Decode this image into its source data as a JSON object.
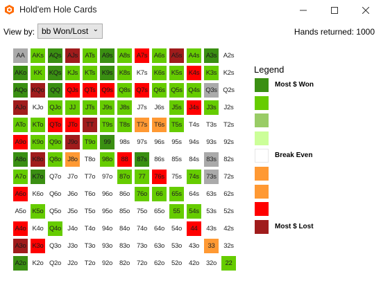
{
  "window": {
    "title": "Hold'em Hole Cards"
  },
  "toolbar": {
    "viewby_label": "View by:",
    "viewby_value": "bb Won/Lost",
    "hands_returned": "Hands returned: 1000"
  },
  "legend": {
    "title": "Legend",
    "levels": [
      {
        "color": "#3a8f12",
        "label": "Most $ Won"
      },
      {
        "color": "#66cc00",
        "label": ""
      },
      {
        "color": "#99cc66",
        "label": ""
      },
      {
        "color": "#ccff99",
        "label": ""
      },
      {
        "color": "#ffffff",
        "label": "Break Even"
      },
      {
        "color": "#ff9933",
        "label": ""
      },
      {
        "color": "#ff9933",
        "label": ""
      },
      {
        "color": "#ff0000",
        "label": ""
      },
      {
        "color": "#a01c1c",
        "label": "Most $ Lost"
      }
    ]
  },
  "palette": {
    "G": "#3a8f12",
    "g": "#66cc00",
    "l": "#99cc66",
    "w": "#ffffff",
    "o": "#ff9933",
    "r": "#ff0000",
    "R": "#a01c1c",
    "a": "#aaaaaa"
  },
  "matrix": [
    [
      [
        "AA",
        "a"
      ],
      [
        "AKs",
        "g"
      ],
      [
        "AQs",
        "G"
      ],
      [
        "AJs",
        "R"
      ],
      [
        "ATs",
        "g"
      ],
      [
        "A9s",
        "G"
      ],
      [
        "A8s",
        "g"
      ],
      [
        "A7s",
        "r"
      ],
      [
        "A6s",
        "g"
      ],
      [
        "A5s",
        "R"
      ],
      [
        "A4s",
        "g"
      ],
      [
        "A3s",
        "G"
      ],
      [
        "A2s",
        "w"
      ]
    ],
    [
      [
        "AKo",
        "G"
      ],
      [
        "KK",
        "g"
      ],
      [
        "KQs",
        "G"
      ],
      [
        "KJs",
        "g"
      ],
      [
        "KTs",
        "g"
      ],
      [
        "K9s",
        "G"
      ],
      [
        "K8s",
        "g"
      ],
      [
        "K7s",
        "w"
      ],
      [
        "K6s",
        "g"
      ],
      [
        "K5s",
        "g"
      ],
      [
        "K4s",
        "r"
      ],
      [
        "K3s",
        "g"
      ],
      [
        "K2s",
        "w"
      ]
    ],
    [
      [
        "AQo",
        "G"
      ],
      [
        "KQo",
        "R"
      ],
      [
        "QQ",
        "G"
      ],
      [
        "QJs",
        "r"
      ],
      [
        "QTs",
        "r"
      ],
      [
        "Q9s",
        "r"
      ],
      [
        "Q8s",
        "g"
      ],
      [
        "Q7s",
        "r"
      ],
      [
        "Q6s",
        "g"
      ],
      [
        "Q5s",
        "g"
      ],
      [
        "Q4s",
        "g"
      ],
      [
        "Q3s",
        "a"
      ],
      [
        "Q2s",
        "w"
      ]
    ],
    [
      [
        "AJo",
        "R"
      ],
      [
        "KJo",
        "w"
      ],
      [
        "QJo",
        "g"
      ],
      [
        "JJ",
        "g"
      ],
      [
        "JTs",
        "g"
      ],
      [
        "J9s",
        "g"
      ],
      [
        "J8s",
        "g"
      ],
      [
        "J7s",
        "w"
      ],
      [
        "J6s",
        "w"
      ],
      [
        "J5s",
        "g"
      ],
      [
        "J4s",
        "r"
      ],
      [
        "J3s",
        "g"
      ],
      [
        "J2s",
        "w"
      ]
    ],
    [
      [
        "ATo",
        "g"
      ],
      [
        "KTo",
        "g"
      ],
      [
        "QTo",
        "r"
      ],
      [
        "JTo",
        "r"
      ],
      [
        "TT",
        "R"
      ],
      [
        "T9s",
        "g"
      ],
      [
        "T8s",
        "g"
      ],
      [
        "T7s",
        "o"
      ],
      [
        "T6s",
        "o"
      ],
      [
        "T5s",
        "g"
      ],
      [
        "T4s",
        "w"
      ],
      [
        "T3s",
        "w"
      ],
      [
        "T2s",
        "w"
      ]
    ],
    [
      [
        "A9o",
        "r"
      ],
      [
        "K9o",
        "g"
      ],
      [
        "Q9o",
        "g"
      ],
      [
        "J9o",
        "R"
      ],
      [
        "T9o",
        "g"
      ],
      [
        "99",
        "G"
      ],
      [
        "98s",
        "w"
      ],
      [
        "97s",
        "w"
      ],
      [
        "96s",
        "w"
      ],
      [
        "95s",
        "w"
      ],
      [
        "94s",
        "w"
      ],
      [
        "93s",
        "w"
      ],
      [
        "92s",
        "w"
      ]
    ],
    [
      [
        "A8o",
        "G"
      ],
      [
        "K8o",
        "R"
      ],
      [
        "Q8o",
        "g"
      ],
      [
        "J8o",
        "o"
      ],
      [
        "T8o",
        "w"
      ],
      [
        "98o",
        "g"
      ],
      [
        "88",
        "r"
      ],
      [
        "87s",
        "G"
      ],
      [
        "86s",
        "w"
      ],
      [
        "85s",
        "w"
      ],
      [
        "84s",
        "w"
      ],
      [
        "83s",
        "a"
      ],
      [
        "82s",
        "w"
      ]
    ],
    [
      [
        "A7o",
        "g"
      ],
      [
        "K7o",
        "G"
      ],
      [
        "Q7o",
        "w"
      ],
      [
        "J7o",
        "w"
      ],
      [
        "T7o",
        "w"
      ],
      [
        "97o",
        "w"
      ],
      [
        "87o",
        "g"
      ],
      [
        "77",
        "g"
      ],
      [
        "76s",
        "r"
      ],
      [
        "75s",
        "w"
      ],
      [
        "74s",
        "g"
      ],
      [
        "73s",
        "a"
      ],
      [
        "72s",
        "w"
      ]
    ],
    [
      [
        "A6o",
        "r"
      ],
      [
        "K6o",
        "w"
      ],
      [
        "Q6o",
        "w"
      ],
      [
        "J6o",
        "w"
      ],
      [
        "T6o",
        "w"
      ],
      [
        "96o",
        "w"
      ],
      [
        "86o",
        "w"
      ],
      [
        "76o",
        "g"
      ],
      [
        "66",
        "g"
      ],
      [
        "65s",
        "g"
      ],
      [
        "64s",
        "w"
      ],
      [
        "63s",
        "w"
      ],
      [
        "62s",
        "w"
      ]
    ],
    [
      [
        "A5o",
        "w"
      ],
      [
        "K5o",
        "g"
      ],
      [
        "Q5o",
        "w"
      ],
      [
        "J5o",
        "w"
      ],
      [
        "T5o",
        "w"
      ],
      [
        "95o",
        "w"
      ],
      [
        "85o",
        "w"
      ],
      [
        "75o",
        "w"
      ],
      [
        "65o",
        "w"
      ],
      [
        "55",
        "g"
      ],
      [
        "54s",
        "g"
      ],
      [
        "53s",
        "w"
      ],
      [
        "52s",
        "w"
      ]
    ],
    [
      [
        "A4o",
        "r"
      ],
      [
        "K4o",
        "w"
      ],
      [
        "Q4o",
        "g"
      ],
      [
        "J4o",
        "w"
      ],
      [
        "T4o",
        "w"
      ],
      [
        "94o",
        "w"
      ],
      [
        "84o",
        "w"
      ],
      [
        "74o",
        "w"
      ],
      [
        "64o",
        "w"
      ],
      [
        "54o",
        "w"
      ],
      [
        "44",
        "r"
      ],
      [
        "43s",
        "w"
      ],
      [
        "42s",
        "w"
      ]
    ],
    [
      [
        "A3o",
        "R"
      ],
      [
        "K3o",
        "r"
      ],
      [
        "Q3o",
        "w"
      ],
      [
        "J3o",
        "w"
      ],
      [
        "T3o",
        "w"
      ],
      [
        "93o",
        "w"
      ],
      [
        "83o",
        "w"
      ],
      [
        "73o",
        "w"
      ],
      [
        "63o",
        "w"
      ],
      [
        "53o",
        "w"
      ],
      [
        "43o",
        "w"
      ],
      [
        "33",
        "o"
      ],
      [
        "32s",
        "w"
      ]
    ],
    [
      [
        "A2o",
        "G"
      ],
      [
        "K2o",
        "w"
      ],
      [
        "Q2o",
        "w"
      ],
      [
        "J2o",
        "w"
      ],
      [
        "T2o",
        "w"
      ],
      [
        "92o",
        "w"
      ],
      [
        "82o",
        "w"
      ],
      [
        "72o",
        "w"
      ],
      [
        "62o",
        "w"
      ],
      [
        "52o",
        "w"
      ],
      [
        "42o",
        "w"
      ],
      [
        "32o",
        "w"
      ],
      [
        "22",
        "g"
      ]
    ]
  ]
}
